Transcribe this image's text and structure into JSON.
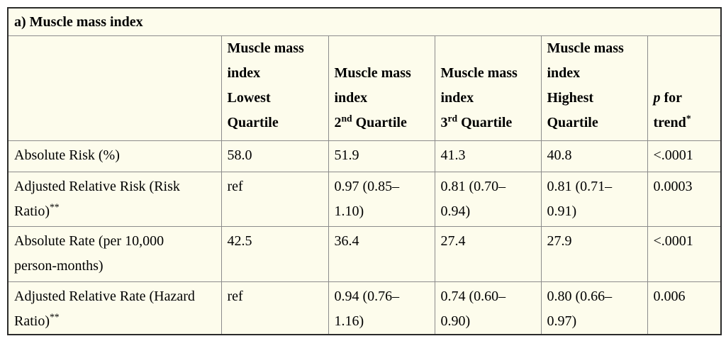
{
  "title": "a) Muscle mass index",
  "colors": {
    "page_bg": "#ffffff",
    "table_bg": "#fdfcec",
    "border_outer": "#2b2b2b",
    "border_inner": "#8c8c8c",
    "text": "#000000"
  },
  "table": {
    "headers": [
      {
        "name": "row-label-empty",
        "lines": []
      },
      {
        "name": "mmi-lowest-quartile",
        "lines": [
          [
            {
              "t": "Muscle mass"
            }
          ],
          [
            {
              "t": "index"
            }
          ],
          [
            {
              "t": "Lowest"
            }
          ],
          [
            {
              "t": "Quartile"
            }
          ]
        ]
      },
      {
        "name": "mmi-2nd-quartile",
        "lines": [
          [
            {
              "t": "Muscle mass"
            }
          ],
          [
            {
              "t": "index"
            }
          ],
          [
            {
              "t": "2"
            },
            {
              "t": "nd",
              "sup": true
            },
            {
              "t": " Quartile"
            }
          ]
        ]
      },
      {
        "name": "mmi-3rd-quartile",
        "lines": [
          [
            {
              "t": "Muscle mass"
            }
          ],
          [
            {
              "t": "index"
            }
          ],
          [
            {
              "t": "3"
            },
            {
              "t": "rd",
              "sup": true
            },
            {
              "t": " Quartile"
            }
          ]
        ]
      },
      {
        "name": "mmi-highest-quartile",
        "lines": [
          [
            {
              "t": "Muscle mass"
            }
          ],
          [
            {
              "t": "index"
            }
          ],
          [
            {
              "t": "Highest"
            }
          ],
          [
            {
              "t": "Quartile"
            }
          ]
        ]
      },
      {
        "name": "p-for-trend",
        "lines": [
          [
            {
              "t": "p",
              "italic": true
            },
            {
              "t": " for"
            }
          ],
          [
            {
              "t": "trend"
            },
            {
              "t": "*",
              "sup": true
            }
          ]
        ]
      }
    ],
    "rows": [
      {
        "name": "absolute-risk",
        "label": [
          [
            {
              "t": "Absolute Risk (%)"
            }
          ]
        ],
        "values": [
          [
            "58.0"
          ],
          [
            "51.9"
          ],
          [
            "41.3"
          ],
          [
            "40.8"
          ],
          [
            "<.0001"
          ]
        ]
      },
      {
        "name": "adjusted-relative-risk",
        "label": [
          [
            {
              "t": "Adjusted Relative Risk (Risk"
            }
          ],
          [
            {
              "t": "Ratio)"
            },
            {
              "t": "**",
              "sup": true
            }
          ]
        ],
        "values": [
          [
            "ref"
          ],
          [
            "0.97 (0.85–",
            "1.10)"
          ],
          [
            "0.81 (0.70–",
            "0.94)"
          ],
          [
            "0.81 (0.71–",
            "0.91)"
          ],
          [
            "0.0003"
          ]
        ]
      },
      {
        "name": "absolute-rate",
        "label": [
          [
            {
              "t": "Absolute Rate (per 10,000"
            }
          ],
          [
            {
              "t": "person-months)"
            }
          ]
        ],
        "values": [
          [
            "42.5"
          ],
          [
            "36.4"
          ],
          [
            "27.4"
          ],
          [
            "27.9"
          ],
          [
            "<.0001"
          ]
        ]
      },
      {
        "name": "adjusted-relative-rate",
        "label": [
          [
            {
              "t": "Adjusted Relative Rate (Hazard"
            }
          ],
          [
            {
              "t": "Ratio)"
            },
            {
              "t": "**",
              "sup": true
            }
          ]
        ],
        "values": [
          [
            "ref"
          ],
          [
            "0.94 (0.76–",
            "1.16)"
          ],
          [
            "0.74 (0.60–",
            "0.90)"
          ],
          [
            "0.80 (0.66–",
            "0.97)"
          ],
          [
            "0.006"
          ]
        ]
      }
    ]
  }
}
